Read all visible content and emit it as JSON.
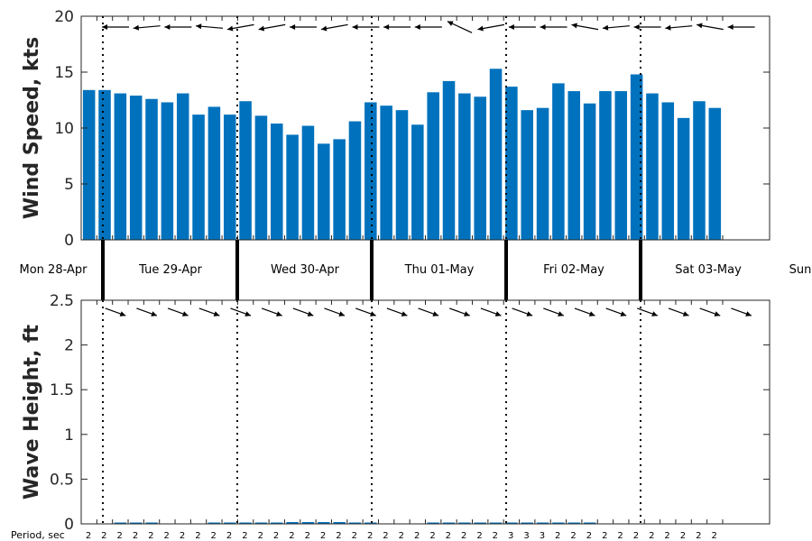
{
  "colors": {
    "bar": "#0072BD",
    "axis": "#262626",
    "arrow": "#000000"
  },
  "days": [
    "Mon 28-Apr",
    "Tue 29-Apr",
    "Wed 30-Apr",
    "Thu 01-May",
    "Fri 02-May",
    "Sat 03-May",
    "Sun"
  ],
  "period_title": "Period, sec",
  "chart_data": [
    {
      "type": "bar",
      "ylabel": "Wind Speed, kts",
      "ylim": [
        0,
        20
      ],
      "yticks": [
        "0",
        "5",
        "10",
        "15",
        "20"
      ],
      "grid": false,
      "x_unit": "days since Mon 28-Apr 00:00",
      "bar_step_hours": 3,
      "values": [
        13.4,
        13.4,
        13.1,
        12.9,
        12.6,
        12.3,
        13.1,
        11.2,
        11.9,
        11.2,
        12.4,
        11.1,
        10.4,
        9.4,
        10.2,
        8.6,
        9.0,
        10.6,
        12.3,
        12.0,
        11.6,
        10.3,
        13.2,
        14.2,
        13.1,
        12.8,
        15.3,
        13.7,
        11.6,
        11.8,
        14.0,
        13.3,
        12.2,
        13.3,
        13.3,
        14.8,
        13.1,
        12.3,
        10.9,
        12.4,
        11.8
      ],
      "direction_arrows_deg": [
        180,
        185,
        180,
        175,
        190,
        190,
        180,
        190,
        180,
        180,
        180,
        155,
        190,
        180,
        180,
        170,
        185,
        180,
        185,
        170,
        180,
        180,
        180,
        175,
        180,
        185,
        170,
        160,
        180,
        160,
        170,
        150
      ]
    },
    {
      "type": "bar",
      "ylabel": "Wave Height, ft",
      "ylim": [
        0,
        2.5
      ],
      "yticks": [
        "0",
        "0.5",
        "1",
        "1.5",
        "2",
        "2.5"
      ],
      "grid": false,
      "values": [
        0,
        0,
        0.01,
        0.01,
        0.01,
        0,
        0,
        0,
        0.01,
        0.01,
        0.01,
        0.01,
        0.01,
        0.02,
        0.02,
        0.02,
        0.02,
        0.01,
        0.01,
        0,
        0,
        0,
        0.01,
        0.01,
        0.01,
        0.01,
        0.01,
        0.01,
        0.01,
        0.01,
        0.01,
        0.01,
        0.01,
        0,
        0,
        0,
        0,
        0,
        0,
        0,
        0
      ],
      "direction_arrows_deg": [
        340,
        340,
        340,
        340,
        340,
        340,
        340,
        340,
        340,
        340,
        340,
        340,
        340,
        340,
        340,
        340,
        340,
        340,
        340,
        340,
        340,
        340,
        340,
        340
      ],
      "periods_sec": [
        2,
        2,
        2,
        2,
        2,
        2,
        2,
        2,
        2,
        2,
        2,
        2,
        2,
        2,
        2,
        2,
        2,
        2,
        2,
        2,
        2,
        2,
        2,
        2,
        2,
        2,
        2,
        3,
        3,
        3,
        2,
        2,
        2,
        2,
        2,
        2,
        2,
        2,
        2,
        2,
        2
      ]
    }
  ]
}
